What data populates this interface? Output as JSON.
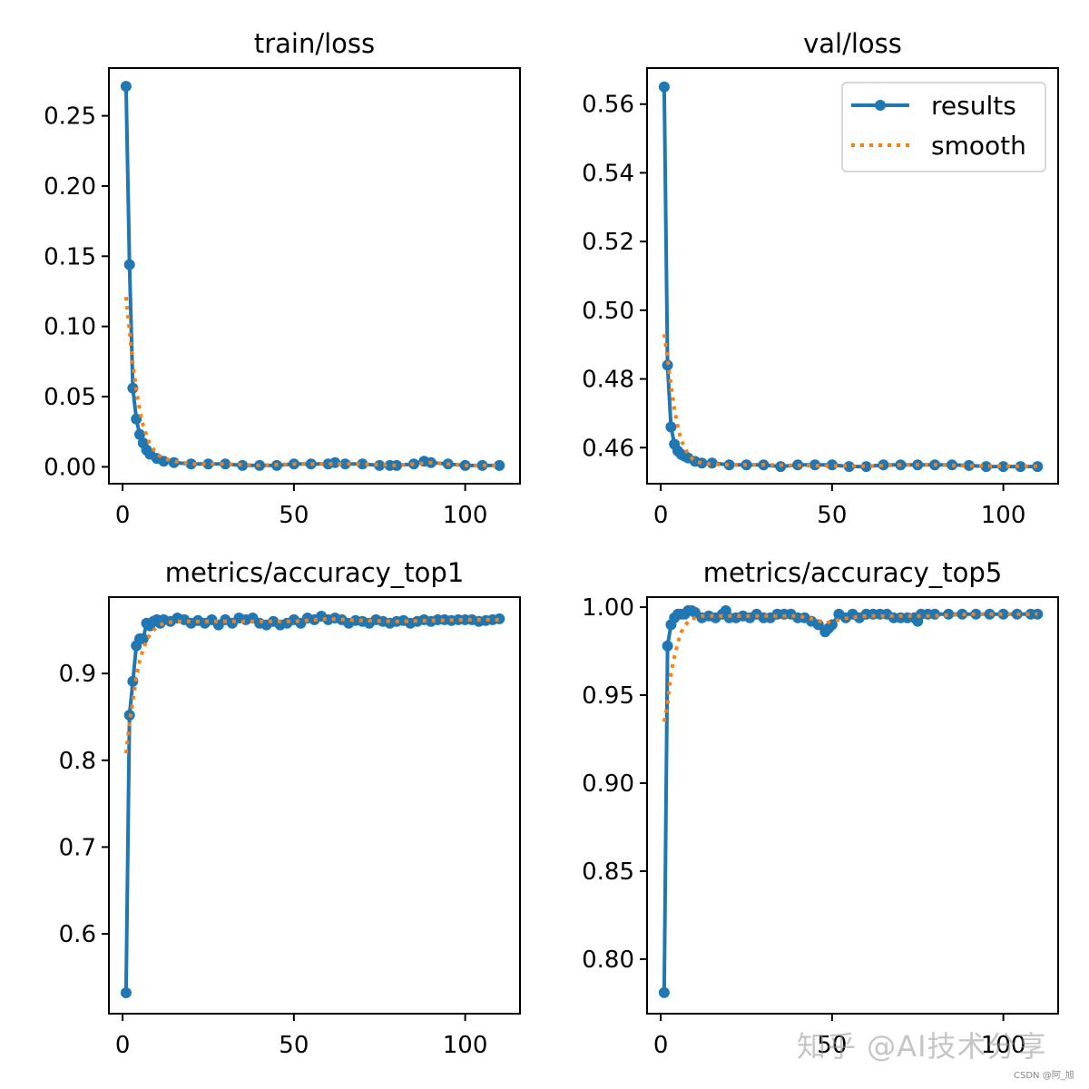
{
  "chart_data": [
    {
      "type": "line",
      "title": "train/loss",
      "xlabel": "",
      "ylabel": "",
      "xlim": [
        -4,
        116
      ],
      "ylim": [
        -0.012,
        0.284
      ],
      "xticks": [
        0,
        50,
        100
      ],
      "yticks": [
        0.0,
        0.05,
        0.1,
        0.15,
        0.2,
        0.25
      ],
      "ytick_labels": [
        "0.00",
        "0.05",
        "0.10",
        "0.15",
        "0.20",
        "0.25"
      ],
      "legend": false,
      "grid": false,
      "series": [
        {
          "name": "results",
          "x": [
            1,
            2,
            3,
            4,
            5,
            6,
            7,
            8,
            10,
            12,
            15,
            20,
            25,
            30,
            35,
            40,
            45,
            50,
            55,
            60,
            62,
            65,
            70,
            75,
            78,
            80,
            85,
            88,
            90,
            95,
            100,
            105,
            110
          ],
          "y": [
            0.271,
            0.144,
            0.056,
            0.034,
            0.023,
            0.017,
            0.012,
            0.009,
            0.006,
            0.004,
            0.003,
            0.002,
            0.002,
            0.002,
            0.001,
            0.001,
            0.001,
            0.002,
            0.002,
            0.002,
            0.003,
            0.002,
            0.002,
            0.001,
            0.001,
            0.001,
            0.002,
            0.004,
            0.003,
            0.002,
            0.001,
            0.001,
            0.001
          ]
        },
        {
          "name": "smooth",
          "x": [
            1,
            2,
            3,
            4,
            5,
            6,
            8,
            10,
            12,
            15,
            20,
            30,
            40,
            50,
            60,
            70,
            80,
            90,
            100,
            110
          ],
          "y": [
            0.121,
            0.097,
            0.073,
            0.055,
            0.04,
            0.029,
            0.016,
            0.009,
            0.006,
            0.004,
            0.002,
            0.002,
            0.001,
            0.002,
            0.002,
            0.002,
            0.001,
            0.003,
            0.001,
            0.001
          ]
        }
      ]
    },
    {
      "type": "line",
      "title": "val/loss",
      "xlabel": "",
      "ylabel": "",
      "xlim": [
        -4,
        116
      ],
      "ylim": [
        0.4495,
        0.5705
      ],
      "xticks": [
        0,
        50,
        100
      ],
      "yticks": [
        0.46,
        0.48,
        0.5,
        0.52,
        0.54,
        0.56
      ],
      "ytick_labels": [
        "0.46",
        "0.48",
        "0.50",
        "0.52",
        "0.54",
        "0.56"
      ],
      "legend": true,
      "legend_position": "top-right",
      "grid": false,
      "series": [
        {
          "name": "results",
          "x": [
            1,
            2,
            3,
            4,
            5,
            6,
            7,
            8,
            10,
            12,
            15,
            20,
            25,
            30,
            35,
            40,
            45,
            50,
            55,
            60,
            65,
            70,
            75,
            80,
            85,
            90,
            95,
            100,
            105,
            110
          ],
          "y": [
            0.565,
            0.484,
            0.466,
            0.461,
            0.459,
            0.458,
            0.4575,
            0.457,
            0.456,
            0.4555,
            0.4555,
            0.455,
            0.455,
            0.455,
            0.4545,
            0.455,
            0.455,
            0.455,
            0.4545,
            0.4545,
            0.455,
            0.455,
            0.455,
            0.455,
            0.455,
            0.4548,
            0.4545,
            0.4545,
            0.4545,
            0.4545
          ]
        },
        {
          "name": "smooth",
          "x": [
            1,
            2,
            3,
            4,
            5,
            6,
            8,
            10,
            12,
            15,
            20,
            30,
            40,
            50,
            60,
            70,
            80,
            90,
            100,
            110
          ],
          "y": [
            0.493,
            0.486,
            0.478,
            0.471,
            0.466,
            0.462,
            0.458,
            0.456,
            0.4555,
            0.4552,
            0.455,
            0.455,
            0.4548,
            0.4547,
            0.4546,
            0.455,
            0.455,
            0.4547,
            0.4546,
            0.4546
          ]
        }
      ]
    },
    {
      "type": "line",
      "title": "metrics/accuracy_top1",
      "xlabel": "",
      "ylabel": "",
      "xlim": [
        -4,
        116
      ],
      "ylim": [
        0.508,
        0.988
      ],
      "xticks": [
        0,
        50,
        100
      ],
      "yticks": [
        0.6,
        0.7,
        0.8,
        0.9
      ],
      "ytick_labels": [
        "0.6",
        "0.7",
        "0.8",
        "0.9"
      ],
      "legend": false,
      "grid": false,
      "series": [
        {
          "name": "results",
          "x": [
            1,
            2,
            3,
            4,
            5,
            6,
            7,
            8,
            9,
            10,
            11,
            12,
            14,
            16,
            18,
            20,
            22,
            24,
            26,
            28,
            30,
            32,
            34,
            36,
            38,
            40,
            42,
            44,
            46,
            48,
            50,
            52,
            54,
            56,
            58,
            60,
            62,
            64,
            66,
            68,
            70,
            72,
            74,
            76,
            78,
            80,
            82,
            84,
            86,
            88,
            90,
            92,
            94,
            96,
            98,
            100,
            102,
            104,
            106,
            108,
            110
          ],
          "y": [
            0.532,
            0.852,
            0.891,
            0.932,
            0.94,
            0.94,
            0.958,
            0.955,
            0.96,
            0.962,
            0.958,
            0.962,
            0.96,
            0.964,
            0.962,
            0.958,
            0.961,
            0.958,
            0.962,
            0.956,
            0.962,
            0.958,
            0.964,
            0.962,
            0.964,
            0.958,
            0.956,
            0.96,
            0.956,
            0.958,
            0.962,
            0.958,
            0.964,
            0.962,
            0.966,
            0.962,
            0.964,
            0.962,
            0.958,
            0.961,
            0.96,
            0.958,
            0.962,
            0.96,
            0.958,
            0.96,
            0.961,
            0.958,
            0.96,
            0.962,
            0.96,
            0.962,
            0.962,
            0.961,
            0.962,
            0.962,
            0.962,
            0.96,
            0.961,
            0.962,
            0.963
          ]
        },
        {
          "name": "smooth",
          "x": [
            1,
            2,
            3,
            4,
            5,
            6,
            7,
            8,
            10,
            12,
            15,
            20,
            30,
            40,
            50,
            60,
            70,
            80,
            90,
            100,
            110
          ],
          "y": [
            0.808,
            0.843,
            0.868,
            0.896,
            0.915,
            0.928,
            0.938,
            0.945,
            0.954,
            0.958,
            0.96,
            0.96,
            0.96,
            0.96,
            0.96,
            0.963,
            0.961,
            0.96,
            0.961,
            0.962,
            0.962
          ]
        }
      ]
    },
    {
      "type": "line",
      "title": "metrics/accuracy_top5",
      "xlabel": "",
      "ylabel": "",
      "xlim": [
        -4,
        116
      ],
      "ylim": [
        0.769,
        1.0057
      ],
      "xticks": [
        0,
        50,
        100
      ],
      "yticks": [
        0.8,
        0.85,
        0.9,
        0.95,
        1.0
      ],
      "ytick_labels": [
        "0.80",
        "0.85",
        "0.90",
        "0.95",
        "1.00"
      ],
      "legend": false,
      "grid": false,
      "series": [
        {
          "name": "results",
          "x": [
            1,
            2,
            3,
            4,
            5,
            6,
            7,
            8,
            9,
            10,
            12,
            14,
            16,
            18,
            19,
            20,
            22,
            24,
            26,
            28,
            30,
            32,
            34,
            36,
            38,
            40,
            42,
            44,
            46,
            48,
            49,
            50,
            52,
            54,
            56,
            58,
            60,
            62,
            64,
            66,
            68,
            70,
            72,
            74,
            75,
            76,
            78,
            80,
            84,
            88,
            92,
            96,
            100,
            104,
            108,
            110
          ],
          "y": [
            0.781,
            0.978,
            0.99,
            0.994,
            0.996,
            0.996,
            0.996,
            0.998,
            0.998,
            0.997,
            0.994,
            0.995,
            0.994,
            0.996,
            0.998,
            0.994,
            0.994,
            0.995,
            0.994,
            0.996,
            0.994,
            0.994,
            0.996,
            0.996,
            0.996,
            0.994,
            0.994,
            0.992,
            0.99,
            0.986,
            0.988,
            0.99,
            0.996,
            0.994,
            0.996,
            0.994,
            0.996,
            0.996,
            0.996,
            0.996,
            0.994,
            0.994,
            0.994,
            0.994,
            0.992,
            0.996,
            0.996,
            0.996,
            0.996,
            0.996,
            0.996,
            0.996,
            0.996,
            0.996,
            0.996,
            0.996
          ]
        },
        {
          "name": "smooth",
          "x": [
            1,
            2,
            3,
            4,
            5,
            6,
            8,
            10,
            12,
            15,
            20,
            30,
            40,
            45,
            48,
            50,
            55,
            60,
            70,
            80,
            90,
            100,
            110
          ],
          "y": [
            0.935,
            0.945,
            0.963,
            0.972,
            0.98,
            0.986,
            0.992,
            0.994,
            0.995,
            0.995,
            0.995,
            0.995,
            0.995,
            0.993,
            0.991,
            0.992,
            0.994,
            0.995,
            0.995,
            0.995,
            0.996,
            0.996,
            0.996
          ]
        }
      ]
    }
  ],
  "watermark": "知乎 @AI技术分享",
  "credit": "CSDN @阿_旭",
  "colors": {
    "results": "#1f77b4",
    "smooth": "#ff7f0e"
  }
}
